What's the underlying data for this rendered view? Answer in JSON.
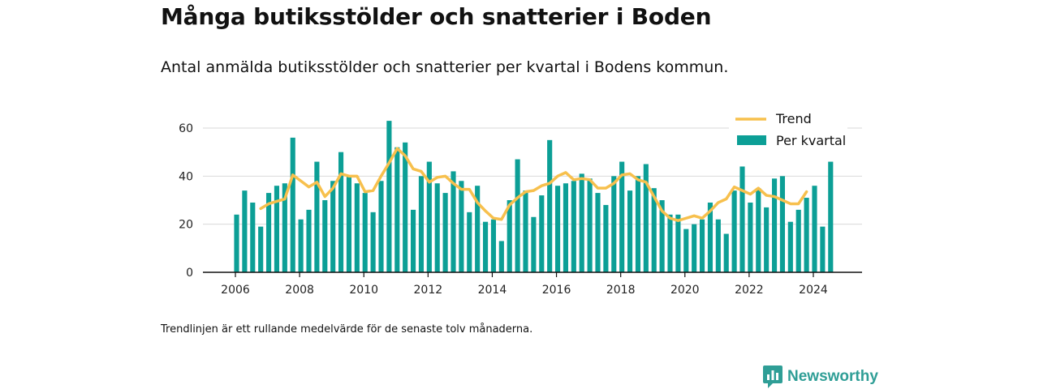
{
  "title": "Många butiksstölder och snatterier i Boden",
  "subtitle": "Antal anmälda butiksstölder och snatterier per kvartal i Bodens kommun.",
  "footnote": "Trendlinjen är ett rullande medelvärde för de senaste tolv månaderna.",
  "logo_text": "Newsworthy",
  "colors": {
    "bar": "#0c9f96",
    "trend": "#f7c04d",
    "grid": "#d9d9d9",
    "axis": "#111111",
    "logo": "#2f9e96"
  },
  "chart_data": {
    "type": "bar",
    "ylim": [
      0,
      65
    ],
    "yticks": [
      0,
      20,
      40,
      60
    ],
    "xlim": [
      2005.5,
      2025.5
    ],
    "xticks": [
      2006,
      2008,
      2010,
      2012,
      2014,
      2016,
      2018,
      2020,
      2022,
      2024
    ],
    "grid": true,
    "legend_position": "top-right",
    "series": [
      {
        "name": "Per kvartal",
        "type": "bar",
        "start": "2006 Q1",
        "values": [
          24,
          34,
          29,
          19,
          33,
          36,
          37,
          56,
          22,
          26,
          46,
          30,
          38,
          50,
          40,
          37,
          33,
          25,
          38,
          63,
          52,
          54,
          26,
          40,
          46,
          37,
          33,
          42,
          38,
          25,
          36,
          21,
          22,
          13,
          30,
          47,
          34,
          23,
          32,
          55,
          36,
          37,
          38,
          41,
          39,
          33,
          28,
          40,
          46,
          34,
          40,
          45,
          35,
          30,
          24,
          24,
          18,
          20,
          22,
          29,
          22,
          16,
          34,
          44,
          29,
          35,
          27,
          39,
          40,
          21,
          26,
          31,
          36,
          19,
          46
        ]
      },
      {
        "name": "Trend",
        "type": "line",
        "start": "2006 Q4",
        "values": [
          26.5,
          28.5,
          29.5,
          30.5,
          40.5,
          38,
          35.5,
          37.5,
          31.5,
          35,
          41,
          40,
          40,
          33.5,
          34,
          40,
          45.5,
          51.5,
          48.5,
          43,
          42,
          37.5,
          39.5,
          40,
          37,
          34.5,
          34.5,
          29,
          25.5,
          22.5,
          22,
          28,
          31,
          33.5,
          34,
          36,
          37,
          40,
          41.5,
          38.5,
          39,
          38.5,
          35,
          35,
          37,
          40.5,
          41,
          38.5,
          37.5,
          31.5,
          25.5,
          22.5,
          21.5,
          22.5,
          23.5,
          22.5,
          25.5,
          29,
          30.5,
          35.5,
          34,
          32.5,
          35,
          32,
          31.5,
          30,
          28.5,
          28.5,
          33.5
        ]
      }
    ]
  }
}
